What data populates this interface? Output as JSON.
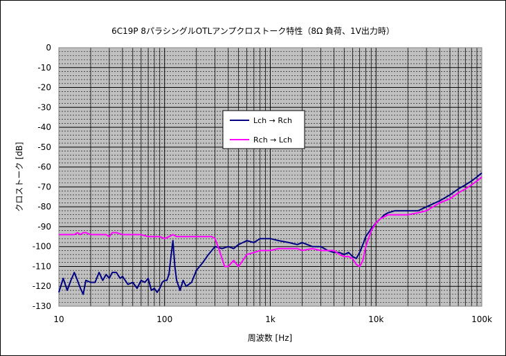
{
  "chart_data": {
    "type": "line",
    "title": "6C19P 8パラシングルOTLアンプクロストーク特性（8Ω 負荷、1V出力時）",
    "xlabel": "周波数 [Hz]",
    "ylabel": "クロストーク [dB]",
    "x_scale": "log",
    "xlim": [
      10,
      100000
    ],
    "ylim": [
      -130,
      0
    ],
    "x_ticks": [
      10,
      100,
      1000,
      10000,
      100000
    ],
    "x_tick_labels": [
      "10",
      "100",
      "1k",
      "10k",
      "100k"
    ],
    "y_ticks": [
      0,
      -10,
      -20,
      -30,
      -40,
      -50,
      -60,
      -70,
      -80,
      -90,
      -100,
      -110,
      -120,
      -130
    ],
    "y_tick_labels": [
      "0",
      "-10",
      "-20",
      "-30",
      "-40",
      "-50",
      "-60",
      "-70",
      "-80",
      "-90",
      "-100",
      "-110",
      "-120",
      "-130"
    ],
    "grid": true,
    "plot_background": "#c0c0c0",
    "legend_position": "upper-center",
    "series": [
      {
        "name": "Lch → Rch",
        "color": "#000080",
        "x": [
          10,
          11,
          12,
          13,
          14,
          15,
          16,
          17,
          18,
          20,
          22,
          24,
          26,
          28,
          30,
          32,
          35,
          38,
          40,
          45,
          50,
          55,
          60,
          65,
          70,
          75,
          80,
          85,
          90,
          95,
          100,
          105,
          110,
          115,
          120,
          125,
          130,
          140,
          150,
          160,
          180,
          200,
          230,
          260,
          300,
          350,
          400,
          450,
          500,
          550,
          600,
          700,
          800,
          900,
          1000,
          1200,
          1500,
          1800,
          2000,
          2500,
          3000,
          3500,
          4000,
          4500,
          5000,
          5500,
          6000,
          6500,
          7000,
          7500,
          8000,
          9000,
          10000,
          11000,
          12000,
          13000,
          15000,
          18000,
          20000,
          25000,
          30000,
          40000,
          50000,
          60000,
          70000,
          80000,
          90000,
          100000
        ],
        "values": [
          -123,
          -116,
          -122,
          -117,
          -113,
          -117,
          -121,
          -124,
          -117,
          -118,
          -118,
          -113,
          -117,
          -114,
          -116,
          -113,
          -113,
          -116,
          -115,
          -119,
          -118,
          -121,
          -117,
          -118,
          -116,
          -122,
          -121,
          -123,
          -121,
          -118,
          -117,
          -117,
          -114,
          -105,
          -97,
          -110,
          -117,
          -122,
          -117,
          -120,
          -118,
          -112,
          -108,
          -104,
          -100,
          -101,
          -100,
          -101,
          -99,
          -98,
          -97,
          -98,
          -96,
          -96,
          -96,
          -97,
          -98,
          -99,
          -98,
          -100,
          -100,
          -102,
          -103,
          -103,
          -104,
          -103,
          -105,
          -106,
          -103,
          -99,
          -95,
          -91,
          -88,
          -86,
          -84,
          -83,
          -82,
          -82,
          -82,
          -82,
          -80,
          -77,
          -74,
          -71,
          -69,
          -67,
          -65,
          -63
        ]
      },
      {
        "name": "Rch → Lch",
        "color": "#ff00ff",
        "x": [
          10,
          12,
          14,
          15,
          16,
          17,
          18,
          20,
          22,
          25,
          28,
          30,
          32,
          35,
          40,
          50,
          60,
          70,
          80,
          90,
          100,
          110,
          120,
          130,
          140,
          160,
          180,
          200,
          230,
          250,
          280,
          300,
          330,
          370,
          400,
          450,
          500,
          550,
          600,
          700,
          800,
          900,
          1000,
          1200,
          1500,
          1800,
          2000,
          2500,
          3000,
          3500,
          4000,
          4500,
          5000,
          5500,
          6000,
          6500,
          7000,
          7500,
          8000,
          9000,
          10000,
          11000,
          12000,
          13000,
          15000,
          18000,
          20000,
          25000,
          30000,
          40000,
          50000,
          60000,
          70000,
          80000,
          90000,
          100000
        ],
        "values": [
          -94,
          -94,
          -94,
          -93,
          -94,
          -93,
          -93,
          -94,
          -94,
          -94,
          -94,
          -95,
          -93,
          -93,
          -94,
          -94,
          -94,
          -95,
          -95,
          -95,
          -96,
          -95,
          -94,
          -95,
          -95,
          -95,
          -95,
          -95,
          -95,
          -95,
          -95,
          -96,
          -102,
          -110,
          -110,
          -107,
          -110,
          -107,
          -104,
          -103,
          -102,
          -102,
          -102,
          -101,
          -101,
          -101,
          -102,
          -101,
          -102,
          -102,
          -102,
          -104,
          -105,
          -105,
          -106,
          -109,
          -110,
          -107,
          -100,
          -92,
          -88,
          -86,
          -85,
          -84,
          -84,
          -84,
          -84,
          -83,
          -82,
          -78,
          -76,
          -73,
          -71,
          -69,
          -67,
          -65
        ]
      }
    ]
  }
}
